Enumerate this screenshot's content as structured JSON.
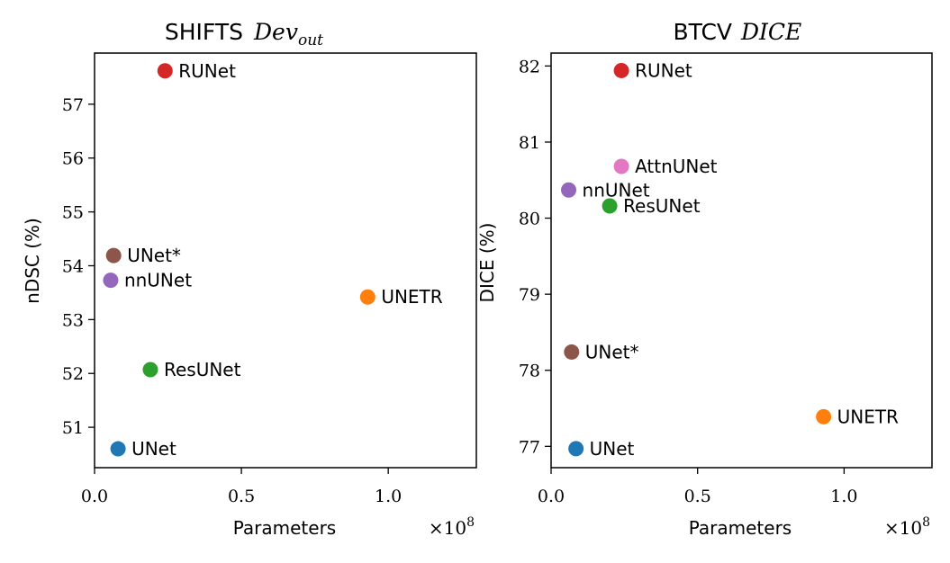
{
  "chart_data": [
    {
      "type": "scatter",
      "title": "SHIFTS",
      "title_math": "Dev",
      "title_math_sub": "out",
      "xlabel": "Parameters",
      "x_multiplier_base": "×10",
      "x_multiplier_exp": "8",
      "ylabel": "nDSC (%)",
      "xlim": [
        0.0,
        1.3
      ],
      "ylim": [
        50.25,
        57.95
      ],
      "xticks": [
        0.0,
        0.5,
        1.0
      ],
      "xtick_labels": [
        "0.0",
        "0.5",
        "1.0"
      ],
      "yticks": [
        51,
        52,
        53,
        54,
        55,
        56,
        57
      ],
      "ytick_labels": [
        "51",
        "52",
        "53",
        "54",
        "55",
        "56",
        "57"
      ],
      "grid": false,
      "points": [
        {
          "label": "UNet",
          "x": 0.08,
          "y": 50.6,
          "color": "#1f77b4"
        },
        {
          "label": "UNETR",
          "x": 0.93,
          "y": 53.42,
          "color": "#ff7f0e"
        },
        {
          "label": "ResUNet",
          "x": 0.19,
          "y": 52.07,
          "color": "#2ca02c"
        },
        {
          "label": "RUNet",
          "x": 0.24,
          "y": 57.62,
          "color": "#d62728"
        },
        {
          "label": "nnUNet",
          "x": 0.055,
          "y": 53.73,
          "color": "#9467bd"
        },
        {
          "label": "UNet*",
          "x": 0.065,
          "y": 54.19,
          "color": "#8c564b"
        }
      ]
    },
    {
      "type": "scatter",
      "title": "BTCV",
      "title_math": "DICE",
      "title_math_sub": "",
      "xlabel": "Parameters",
      "x_multiplier_base": "×10",
      "x_multiplier_exp": "8",
      "ylabel": "DICE (%)",
      "xlim": [
        0.0,
        1.3
      ],
      "ylim": [
        76.72,
        82.17
      ],
      "xticks": [
        0.0,
        0.5,
        1.0
      ],
      "xtick_labels": [
        "0.0",
        "0.5",
        "1.0"
      ],
      "yticks": [
        77,
        78,
        79,
        80,
        81,
        82
      ],
      "ytick_labels": [
        "77",
        "78",
        "79",
        "80",
        "81",
        "82"
      ],
      "grid": false,
      "points": [
        {
          "label": "UNet",
          "x": 0.085,
          "y": 76.97,
          "color": "#1f77b4"
        },
        {
          "label": "UNETR",
          "x": 0.93,
          "y": 77.39,
          "color": "#ff7f0e"
        },
        {
          "label": "ResUNet",
          "x": 0.2,
          "y": 80.16,
          "color": "#2ca02c"
        },
        {
          "label": "RUNet",
          "x": 0.24,
          "y": 81.94,
          "color": "#d62728"
        },
        {
          "label": "nnUNet",
          "x": 0.06,
          "y": 80.37,
          "color": "#9467bd"
        },
        {
          "label": "UNet*",
          "x": 0.07,
          "y": 78.24,
          "color": "#8c564b"
        },
        {
          "label": "AttnUNet",
          "x": 0.24,
          "y": 80.68,
          "color": "#e377c2"
        }
      ]
    }
  ]
}
